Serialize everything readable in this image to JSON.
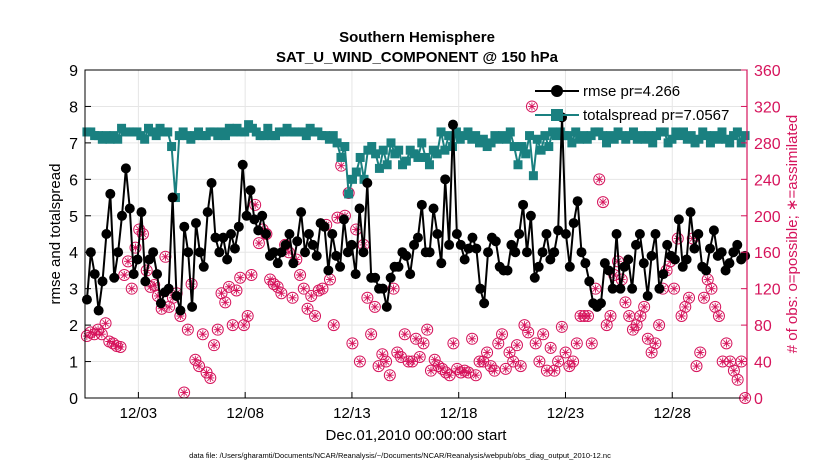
{
  "chart_data": {
    "type": "line",
    "title": "Southern Hemisphere",
    "subtitle": "SAT_U_WIND_COMPONENT @ 150 hPa",
    "xlabel": "Dec.01,2010 00:00:00 start",
    "ylabel": "rmse and totalspread",
    "y2label": "# of obs: o=possible; ∗=assimilated",
    "footnote": "data file: /Users/gharamti/Documents/NCAR/Reanalysis/~/Documents/NCAR/Reanalysis/webpub/obs_diag_output_2010-12.nc",
    "xlim": [
      0.5,
      31.5
    ],
    "ylim": [
      0,
      9
    ],
    "y2lim": [
      0,
      360
    ],
    "xticks": [
      3,
      8,
      13,
      18,
      23,
      28
    ],
    "xticklabels": [
      "12/03",
      "12/08",
      "12/13",
      "12/18",
      "12/23",
      "12/28"
    ],
    "yticks": [
      0,
      1,
      2,
      3,
      4,
      5,
      6,
      7,
      8,
      9
    ],
    "y2ticks": [
      0,
      40,
      80,
      120,
      160,
      200,
      240,
      280,
      320,
      360
    ],
    "legend_position": "top-right",
    "colors": {
      "rmse": "#000000",
      "spread": "#1a8080",
      "obs": "#d6145c",
      "axes": "#000000",
      "right_axis": "#d6145c"
    },
    "series": [
      {
        "name": "rmse pr=4.266",
        "axis": "left",
        "values": [
          2.7,
          4.0,
          3.4,
          2.4,
          3.2,
          4.5,
          5.6,
          3.3,
          4.0,
          5.0,
          6.3,
          5.2,
          3.4,
          3.8,
          5.1,
          3.2,
          3.8,
          4.0,
          3.4,
          2.6,
          2.9,
          3.0,
          5.5,
          2.8,
          2.4,
          4.7,
          4.0,
          2.5,
          4.8,
          4.0,
          3.6,
          5.1,
          5.9,
          4.4,
          4.0,
          4.4,
          3.8,
          4.5,
          4.1,
          4.7,
          6.4,
          5.0,
          5.7,
          4.9,
          4.6,
          5.0,
          4.5,
          3.9,
          4.0,
          3.7,
          4.0,
          4.2,
          4.5,
          3.7,
          4.3,
          5.1,
          4.0,
          4.5,
          4.2,
          3.9,
          4.8,
          4.7,
          3.5,
          4.5,
          3.9,
          3.6,
          4.9,
          4.0,
          4.2,
          3.4,
          5.2,
          4.0,
          5.9,
          3.3,
          3.3,
          3.0,
          3.0,
          2.5,
          3.3,
          3.6,
          3.6,
          4.0,
          3.9,
          3.4,
          4.2,
          4.4,
          5.3,
          4.0,
          4.0,
          5.2,
          4.5,
          3.7,
          6.0,
          4.2,
          7.5,
          4.5,
          4.2,
          3.8,
          4.1,
          4.4,
          4.1,
          3.0,
          2.6,
          4.0,
          4.4,
          4.3,
          3.6,
          3.5,
          3.5,
          4.2,
          4.0,
          4.5,
          5.3,
          4.0,
          5.0,
          3.3,
          3.6,
          4.0,
          4.5,
          3.8,
          4.0,
          4.6,
          7.7,
          4.5,
          3.6,
          4.8,
          5.4,
          4.0,
          3.7,
          3.2,
          2.6,
          2.5,
          2.6,
          3.7,
          3.5,
          3.0,
          4.5,
          3.0,
          3.6,
          3.8,
          3.0,
          4.2,
          4.5,
          3.7,
          2.8,
          3.9,
          4.5,
          3.0,
          3.4,
          4.2,
          3.9,
          3.8,
          4.9,
          3.6,
          3.8,
          5.1,
          4.1,
          4.5,
          3.6,
          3.5,
          4.1,
          4.6,
          3.9,
          4.0,
          3.5,
          3.7,
          4.0,
          4.2,
          3.8,
          3.9
        ]
      },
      {
        "name": "totalspread pr=7.0567",
        "axis": "left",
        "values": [
          7.3,
          7.3,
          7.2,
          7.2,
          7.1,
          7.2,
          7.1,
          7.2,
          7.1,
          7.4,
          7.3,
          7.3,
          7.3,
          7.3,
          7.2,
          7.1,
          7.4,
          7.3,
          7.2,
          7.4,
          7.3,
          7.3,
          6.9,
          5.5,
          7.2,
          7.3,
          7.2,
          7.1,
          7.2,
          7.3,
          7.2,
          7.2,
          7.3,
          7.3,
          7.2,
          7.3,
          7.2,
          7.4,
          7.3,
          7.4,
          7.3,
          7.3,
          7.5,
          7.4,
          7.3,
          7.2,
          7.2,
          7.4,
          7.2,
          7.2,
          7.3,
          7.3,
          7.4,
          7.3,
          7.3,
          7.3,
          7.3,
          7.2,
          7.4,
          7.3,
          7.3,
          7.2,
          7.2,
          7.1,
          7.2,
          7.0,
          6.6,
          6.9,
          5.6,
          6.0,
          6.2,
          6.6,
          6.0,
          6.8,
          6.9,
          6.7,
          6.3,
          6.8,
          6.4,
          7.0,
          6.7,
          6.8,
          6.4,
          6.5,
          6.8,
          6.7,
          6.6,
          7.0,
          6.6,
          6.4,
          6.8,
          6.7,
          7.3,
          6.8,
          7.2,
          6.9,
          7.3,
          7.1,
          7.2,
          7.3,
          7.1,
          7.2,
          7.0,
          7.1,
          6.9,
          7.0,
          7.2,
          7.1,
          7.2,
          7.1,
          7.3,
          6.9,
          6.4,
          6.9,
          6.7,
          7.2,
          6.1,
          7.1,
          6.8,
          7.2,
          6.9,
          7.3,
          7.2,
          7.3,
          7.2,
          7.2,
          7.0,
          7.3,
          7.1,
          7.2,
          7.1,
          7.2,
          7.3,
          7.3,
          7.2,
          7.0,
          7.2,
          7.1,
          7.3,
          7.2,
          7.1,
          7.2,
          7.3,
          7.1,
          7.2,
          7.1,
          7.2,
          7.0,
          7.2,
          7.3,
          7.3,
          7.0,
          7.1,
          7.3,
          7.2,
          7.3,
          7.1,
          7.2,
          7.0,
          7.1,
          7.3,
          7.2,
          7.0,
          7.2,
          7.1,
          7.3,
          7.1,
          7.0,
          7.2,
          7.3,
          7.0,
          7.2
        ]
      },
      {
        "name": "# of obs possible (o) / assimilated (∗)",
        "axis": "right",
        "values": [
          68,
          72,
          70,
          75,
          70,
          82,
          62,
          60,
          57,
          56,
          135,
          150,
          120,
          165,
          185,
          180,
          140,
          122,
          124,
          112,
          98,
          155,
          100,
          110,
          115,
          90,
          6,
          75,
          125,
          42,
          35,
          70,
          28,
          22,
          58,
          75,
          115,
          105,
          122,
          80,
          118,
          132,
          80,
          90,
          135,
          212,
          170,
          185,
          180,
          130,
          125,
          122,
          115,
          168,
          160,
          110,
          152,
          135,
          120,
          98,
          112,
          90,
          118,
          120,
          190,
          130,
          80,
          198,
          255,
          200,
          225,
          60,
          185,
          40,
          168,
          110,
          70,
          100,
          35,
          48,
          40,
          25,
          120,
          50,
          45,
          70,
          40,
          40,
          65,
          45,
          60,
          75,
          30,
          42,
          35,
          32,
          28,
          25,
          60,
          32,
          28,
          30,
          28,
          65,
          25,
          40,
          40,
          50,
          35,
          30,
          60,
          70,
          32,
          50,
          40,
          58,
          35,
          80,
          72,
          320,
          60,
          40,
          70,
          30,
          55,
          30,
          40,
          78,
          50,
          35,
          40,
          60,
          90,
          90,
          90,
          60,
          120,
          240,
          215,
          80,
          90,
          135,
          150,
          130,
          105,
          90,
          75,
          80,
          90,
          100,
          65,
          50,
          60,
          80,
          120,
          140,
          150,
          120,
          175,
          90,
          100,
          110,
          175,
          35,
          50,
          110,
          130,
          120,
          100,
          90,
          40,
          60,
          40,
          30,
          20,
          40,
          0
        ]
      }
    ]
  }
}
